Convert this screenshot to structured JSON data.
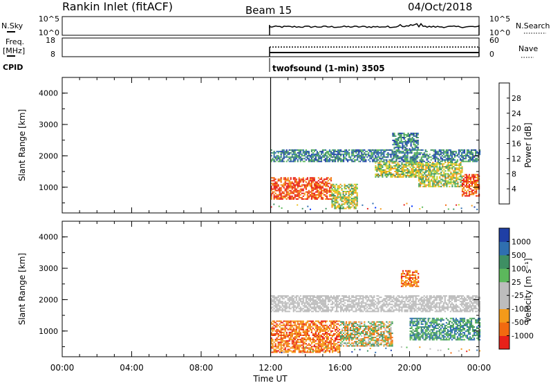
{
  "header": {
    "station": "Rankin Inlet (fitACF)",
    "beam": "Beam 15",
    "date": "04/Oct/2018"
  },
  "strips": {
    "nsky_label": "N.Sky",
    "nsky_ticks": [
      "10^5",
      "10^0"
    ],
    "nsearch_label": "N.Search",
    "nsearch_ticks": [
      "10^5",
      "10^0"
    ],
    "freq_label_1": "Freq.",
    "freq_label_2": "[MHz]",
    "freq_ticks": [
      "18",
      "8"
    ],
    "nave_label": "Nave",
    "nave_ticks": [
      "60",
      "0"
    ],
    "cpid_label": "CPID",
    "cpid_text": "twofsound (1-min) 3505"
  },
  "x_axis": {
    "label": "Time UT",
    "ticks": [
      "00:00",
      "04:00",
      "08:00",
      "12:00",
      "16:00",
      "20:00",
      "00:00"
    ]
  },
  "colors": {
    "power": [
      "#0033ff",
      "#1f3fa5",
      "#2f6fb0",
      "#3e8f63",
      "#5cb85c",
      "#c9d935",
      "#f0c020",
      "#f49a1a",
      "#f26a10",
      "#e8211a"
    ],
    "velocity": [
      "#e8211a",
      "#f26a10",
      "#f49a1a",
      "#bdbdbd",
      "#bdbdbd",
      "#5cb85c",
      "#3e8f63",
      "#2f6fb0",
      "#1f3fa5"
    ]
  },
  "chart_data": [
    {
      "type": "heatmap",
      "name": "power",
      "xlabel": "Time UT",
      "ylabel": "Slant Range [km]",
      "xlim": [
        0,
        24
      ],
      "ylim": [
        180,
        4500
      ],
      "yticks": [
        "1000",
        "2000",
        "3000",
        "4000"
      ],
      "colorbar_label": "Power [dB]",
      "colorbar_ticks": [
        "4",
        "8",
        "12",
        "16",
        "20",
        "24",
        "28"
      ],
      "data_start_hour": 12,
      "regions": [
        {
          "t": [
            12.0,
            15.5
          ],
          "r": [
            600,
            1300
          ],
          "level": "high"
        },
        {
          "t": [
            15.5,
            17.0
          ],
          "r": [
            300,
            1100
          ],
          "level": "mid"
        },
        {
          "t": [
            18.0,
            20.5
          ],
          "r": [
            1300,
            1800
          ],
          "level": "mid"
        },
        {
          "t": [
            20.5,
            23.0
          ],
          "r": [
            1000,
            1800
          ],
          "level": "mid"
        },
        {
          "t": [
            23.0,
            24.0
          ],
          "r": [
            700,
            1400
          ],
          "level": "high"
        },
        {
          "t": [
            19.0,
            20.5
          ],
          "r": [
            2200,
            2700
          ],
          "level": "low"
        },
        {
          "t": [
            12.0,
            24.0
          ],
          "r": [
            1800,
            2200
          ],
          "level": "low"
        }
      ]
    },
    {
      "type": "heatmap",
      "name": "velocity",
      "xlabel": "Time UT",
      "ylabel": "Slant Range [km]",
      "xlim": [
        0,
        24
      ],
      "ylim": [
        180,
        4500
      ],
      "yticks": [
        "1000",
        "2000",
        "3000",
        "4000"
      ],
      "colorbar_label": "Velocity [m s⁻¹]",
      "colorbar_ticks": [
        "1000",
        "500",
        "100",
        "25",
        "-25",
        "-100",
        "-500",
        "-1000"
      ],
      "data_start_hour": 12,
      "regions": [
        {
          "t": [
            12.0,
            16.0
          ],
          "r": [
            300,
            1300
          ],
          "level": "neg"
        },
        {
          "t": [
            16.0,
            19.0
          ],
          "r": [
            500,
            1300
          ],
          "level": "mix"
        },
        {
          "t": [
            12.0,
            24.0
          ],
          "r": [
            1600,
            2100
          ],
          "level": "zero"
        },
        {
          "t": [
            19.5,
            20.5
          ],
          "r": [
            2400,
            2900
          ],
          "level": "neg"
        },
        {
          "t": [
            20.0,
            24.0
          ],
          "r": [
            700,
            1400
          ],
          "level": "pos"
        }
      ]
    }
  ]
}
